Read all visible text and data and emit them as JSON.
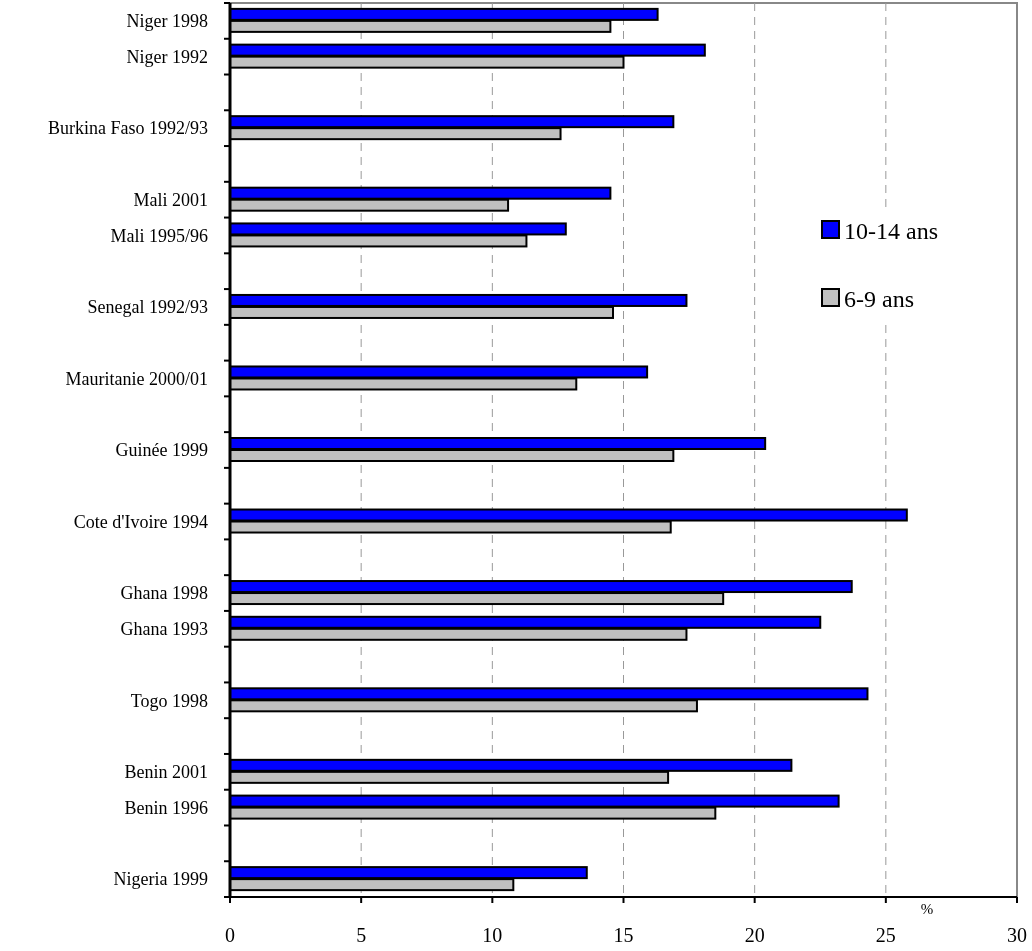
{
  "chart_data": {
    "type": "bar",
    "orientation": "horizontal",
    "xlabel": "%",
    "categories": [
      "Niger 1998",
      "Niger 1992",
      null,
      "Burkina Faso 1992/93",
      null,
      "Mali 2001",
      "Mali 1995/96",
      null,
      "Senegal 1992/93",
      null,
      "Mauritanie 2000/01",
      null,
      "Guinée  1999",
      null,
      "Cote d'Ivoire 1994",
      null,
      "Ghana 1998",
      "Ghana 1993",
      null,
      "Togo 1998",
      null,
      "Benin 2001",
      "Benin 1996",
      null,
      "Nigeria 1999"
    ],
    "series": [
      {
        "name": "10-14 ans",
        "color": "#0000ff",
        "values": [
          16.3,
          18.1,
          null,
          16.9,
          null,
          14.5,
          12.8,
          null,
          17.4,
          null,
          15.9,
          null,
          20.4,
          null,
          25.8,
          null,
          23.7,
          22.5,
          null,
          24.3,
          null,
          21.4,
          23.2,
          null,
          13.6
        ]
      },
      {
        "name": "6-9 ans",
        "color": "#c0c0c0",
        "values": [
          14.5,
          15.0,
          null,
          12.6,
          null,
          10.6,
          11.3,
          null,
          14.6,
          null,
          13.2,
          null,
          16.9,
          null,
          16.8,
          null,
          18.8,
          17.4,
          null,
          17.8,
          null,
          16.7,
          18.5,
          null,
          10.8
        ]
      }
    ],
    "xlim": [
      0,
      30
    ],
    "xticks": [
      0,
      5,
      10,
      15,
      20,
      25,
      30
    ],
    "grid": "x",
    "legend": "right"
  }
}
